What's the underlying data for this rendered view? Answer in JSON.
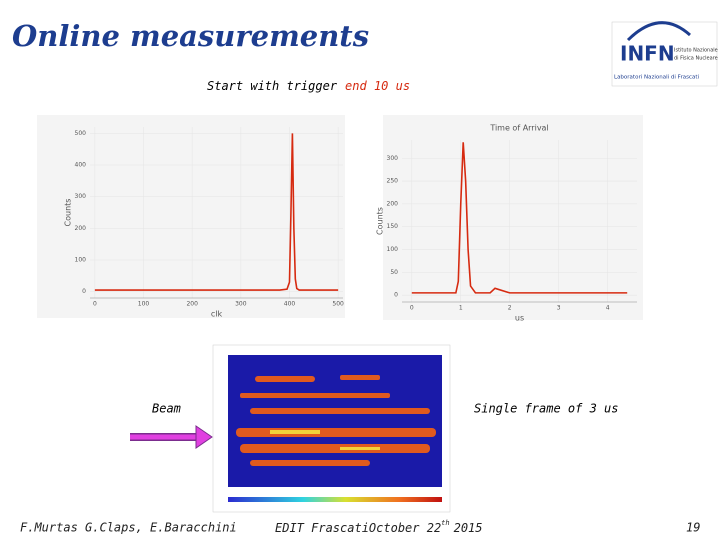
{
  "slide": {
    "title": "Online measurements",
    "subtitle": {
      "lead": "Start with trigger",
      "highlight": "end 10 us"
    },
    "logo": {
      "name": "INFN",
      "line1": "Istituto Nazionale",
      "line2": "di Fisica Nucleare",
      "line3": "Laboratori Nazionali di Frascati"
    },
    "beam_label": "Beam",
    "frame_label": "Single frame of 3 us",
    "footer": {
      "authors": "F.Murtas G.Claps, E.Baracchini",
      "event": "EDIT Frascati",
      "date_a": "October 22",
      "date_sup": "th",
      "date_b": "2015",
      "page": "19"
    }
  },
  "chart_data": [
    {
      "type": "line",
      "xlabel": "clk",
      "ylabel": "Counts",
      "x": [
        0,
        380,
        395,
        400,
        403,
        406,
        409,
        412,
        415,
        420,
        440,
        500
      ],
      "series": [
        {
          "color": "#d62a10",
          "values": [
            5,
            5,
            8,
            30,
            250,
            500,
            200,
            40,
            10,
            5,
            5,
            5
          ]
        }
      ],
      "xlim": [
        -10,
        510
      ],
      "ylim": [
        -20,
        520
      ],
      "xticks": [
        0,
        100,
        200,
        300,
        400,
        500
      ],
      "yticks": [
        0,
        100,
        200,
        300,
        400,
        500
      ],
      "grid": true
    },
    {
      "type": "line",
      "title": "Time of Arrival",
      "xlabel": "us",
      "ylabel": "Counts",
      "x": [
        0,
        0.9,
        0.95,
        1.0,
        1.05,
        1.1,
        1.15,
        1.2,
        1.3,
        1.6,
        1.7,
        2,
        4.4
      ],
      "series": [
        {
          "color": "#d62a10",
          "values": [
            5,
            5,
            30,
            200,
            335,
            250,
            100,
            20,
            5,
            5,
            15,
            5,
            5
          ]
        }
      ],
      "xlim": [
        -0.2,
        4.6
      ],
      "ylim": [
        -15,
        340
      ],
      "xticks": [
        0,
        1,
        2,
        3,
        4
      ],
      "yticks": [
        0,
        50,
        100,
        150,
        200,
        250,
        300
      ],
      "grid": true
    }
  ]
}
